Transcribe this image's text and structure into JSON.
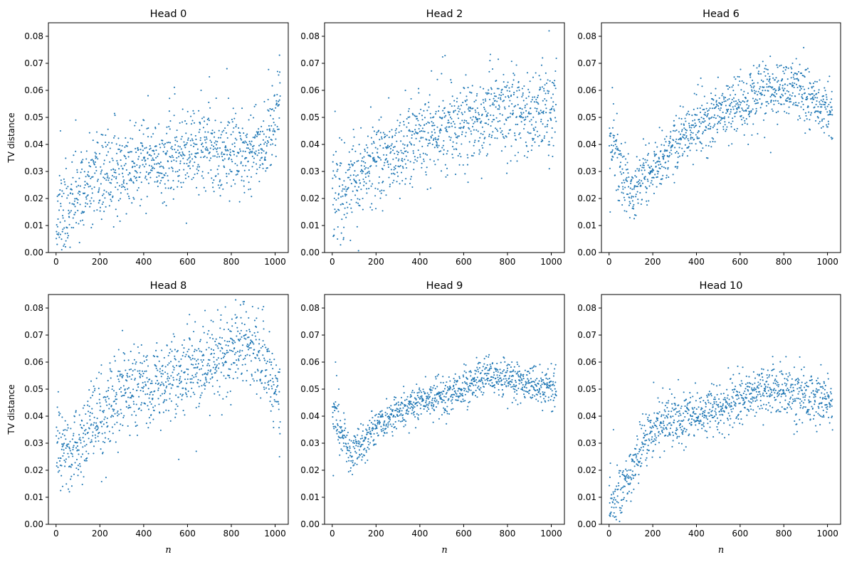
{
  "figure": {
    "xlabel": "n",
    "ylabel": "TV distance",
    "marker_color": "#1f77b4"
  },
  "chart_data": [
    {
      "type": "scatter",
      "title": "Head 0",
      "xlabel": "",
      "ylabel": "TV distance",
      "xlim": [
        -35,
        1060
      ],
      "ylim": [
        0,
        0.085
      ],
      "xticks": [
        0,
        200,
        400,
        600,
        800,
        1000
      ],
      "yticks": [
        0.0,
        0.01,
        0.02,
        0.03,
        0.04,
        0.05,
        0.06,
        0.07,
        0.08
      ],
      "trend": [
        [
          0,
          0.015
        ],
        [
          40,
          0.015
        ],
        [
          100,
          0.021
        ],
        [
          200,
          0.027
        ],
        [
          300,
          0.031
        ],
        [
          400,
          0.033
        ],
        [
          500,
          0.034
        ],
        [
          600,
          0.037
        ],
        [
          700,
          0.038
        ],
        [
          800,
          0.038
        ],
        [
          900,
          0.039
        ],
        [
          960,
          0.042
        ],
        [
          1000,
          0.05
        ],
        [
          1023,
          0.058
        ]
      ],
      "spread": 0.0075,
      "seed": 11,
      "extra_points": [
        [
          5,
          0.003
        ],
        [
          20,
          0.045
        ],
        [
          90,
          0.049
        ],
        [
          780,
          0.068
        ],
        [
          1020,
          0.073
        ],
        [
          700,
          0.065
        ],
        [
          420,
          0.058
        ],
        [
          880,
          0.026
        ]
      ]
    },
    {
      "type": "scatter",
      "title": "Head 2",
      "xlabel": "",
      "ylabel": "",
      "xlim": [
        -35,
        1060
      ],
      "ylim": [
        0,
        0.085
      ],
      "xticks": [
        0,
        200,
        400,
        600,
        800,
        1000
      ],
      "yticks": [
        0.0,
        0.01,
        0.02,
        0.03,
        0.04,
        0.05,
        0.06,
        0.07,
        0.08
      ],
      "trend": [
        [
          0,
          0.023
        ],
        [
          100,
          0.026
        ],
        [
          200,
          0.033
        ],
        [
          300,
          0.038
        ],
        [
          400,
          0.042
        ],
        [
          500,
          0.046
        ],
        [
          600,
          0.048
        ],
        [
          700,
          0.051
        ],
        [
          800,
          0.052
        ],
        [
          900,
          0.05
        ],
        [
          1000,
          0.053
        ],
        [
          1023,
          0.058
        ]
      ],
      "spread": 0.008,
      "seed": 22,
      "extra_points": [
        [
          990,
          0.082
        ],
        [
          720,
          0.071
        ],
        [
          960,
          0.072
        ],
        [
          620,
          0.026
        ],
        [
          5,
          0.006
        ],
        [
          480,
          0.064
        ]
      ]
    },
    {
      "type": "scatter",
      "title": "Head 6",
      "xlabel": "",
      "ylabel": "",
      "xlim": [
        -35,
        1060
      ],
      "ylim": [
        0,
        0.085
      ],
      "xticks": [
        0,
        200,
        400,
        600,
        800,
        1000
      ],
      "yticks": [
        0.0,
        0.01,
        0.02,
        0.03,
        0.04,
        0.05,
        0.06,
        0.07,
        0.08
      ],
      "trend": [
        [
          0,
          0.04
        ],
        [
          30,
          0.038
        ],
        [
          60,
          0.028
        ],
        [
          100,
          0.023
        ],
        [
          150,
          0.026
        ],
        [
          200,
          0.031
        ],
        [
          300,
          0.04
        ],
        [
          400,
          0.046
        ],
        [
          500,
          0.051
        ],
        [
          600,
          0.055
        ],
        [
          700,
          0.06
        ],
        [
          800,
          0.06
        ],
        [
          900,
          0.058
        ],
        [
          1000,
          0.053
        ],
        [
          1023,
          0.048
        ]
      ],
      "spread": 0.0055,
      "seed": 33,
      "extra_points": [
        [
          5,
          0.015
        ],
        [
          15,
          0.061
        ],
        [
          20,
          0.055
        ],
        [
          840,
          0.07
        ],
        [
          740,
          0.037
        ],
        [
          1020,
          0.042
        ]
      ]
    },
    {
      "type": "scatter",
      "title": "Head 8",
      "xlabel": "n",
      "ylabel": "TV distance",
      "xlim": [
        -35,
        1060
      ],
      "ylim": [
        0,
        0.085
      ],
      "xticks": [
        0,
        200,
        400,
        600,
        800,
        1000
      ],
      "yticks": [
        0.0,
        0.01,
        0.02,
        0.03,
        0.04,
        0.05,
        0.06,
        0.07,
        0.08
      ],
      "trend": [
        [
          0,
          0.03
        ],
        [
          50,
          0.026
        ],
        [
          100,
          0.028
        ],
        [
          200,
          0.039
        ],
        [
          300,
          0.047
        ],
        [
          400,
          0.052
        ],
        [
          500,
          0.052
        ],
        [
          600,
          0.057
        ],
        [
          700,
          0.059
        ],
        [
          800,
          0.064
        ],
        [
          860,
          0.068
        ],
        [
          900,
          0.065
        ],
        [
          1000,
          0.052
        ],
        [
          1023,
          0.045
        ]
      ],
      "spread": 0.0075,
      "seed": 44,
      "extra_points": [
        [
          820,
          0.083
        ],
        [
          560,
          0.024
        ],
        [
          640,
          0.027
        ],
        [
          1020,
          0.025
        ],
        [
          10,
          0.049
        ],
        [
          30,
          0.014
        ]
      ]
    },
    {
      "type": "scatter",
      "title": "Head 9",
      "xlabel": "n",
      "ylabel": "",
      "xlim": [
        -35,
        1060
      ],
      "ylim": [
        0,
        0.085
      ],
      "xticks": [
        0,
        200,
        400,
        600,
        800,
        1000
      ],
      "yticks": [
        0.0,
        0.01,
        0.02,
        0.03,
        0.04,
        0.05,
        0.06,
        0.07,
        0.08
      ],
      "trend": [
        [
          0,
          0.04
        ],
        [
          30,
          0.036
        ],
        [
          60,
          0.03
        ],
        [
          90,
          0.026
        ],
        [
          150,
          0.031
        ],
        [
          200,
          0.036
        ],
        [
          300,
          0.042
        ],
        [
          400,
          0.045
        ],
        [
          500,
          0.047
        ],
        [
          600,
          0.05
        ],
        [
          700,
          0.055
        ],
        [
          800,
          0.054
        ],
        [
          900,
          0.052
        ],
        [
          1000,
          0.05
        ],
        [
          1023,
          0.05
        ]
      ],
      "spread": 0.0035,
      "seed": 55,
      "extra_points": [
        [
          5,
          0.018
        ],
        [
          15,
          0.06
        ],
        [
          20,
          0.055
        ],
        [
          30,
          0.05
        ],
        [
          1020,
          0.059
        ],
        [
          820,
          0.06
        ]
      ]
    },
    {
      "type": "scatter",
      "title": "Head 10",
      "xlabel": "n",
      "ylabel": "",
      "xlim": [
        -35,
        1060
      ],
      "ylim": [
        0,
        0.085
      ],
      "xticks": [
        0,
        200,
        400,
        600,
        800,
        1000
      ],
      "yticks": [
        0.0,
        0.01,
        0.02,
        0.03,
        0.04,
        0.05,
        0.06,
        0.07,
        0.08
      ],
      "trend": [
        [
          0,
          0.004
        ],
        [
          30,
          0.008
        ],
        [
          60,
          0.013
        ],
        [
          100,
          0.02
        ],
        [
          150,
          0.029
        ],
        [
          200,
          0.036
        ],
        [
          300,
          0.039
        ],
        [
          400,
          0.041
        ],
        [
          500,
          0.043
        ],
        [
          600,
          0.047
        ],
        [
          700,
          0.049
        ],
        [
          800,
          0.049
        ],
        [
          900,
          0.048
        ],
        [
          1000,
          0.046
        ],
        [
          1023,
          0.045
        ]
      ],
      "spread": 0.0045,
      "seed": 66,
      "extra_points": [
        [
          5,
          0.003
        ],
        [
          20,
          0.035
        ],
        [
          810,
          0.062
        ],
        [
          320,
          0.03
        ],
        [
          970,
          0.059
        ]
      ]
    }
  ]
}
